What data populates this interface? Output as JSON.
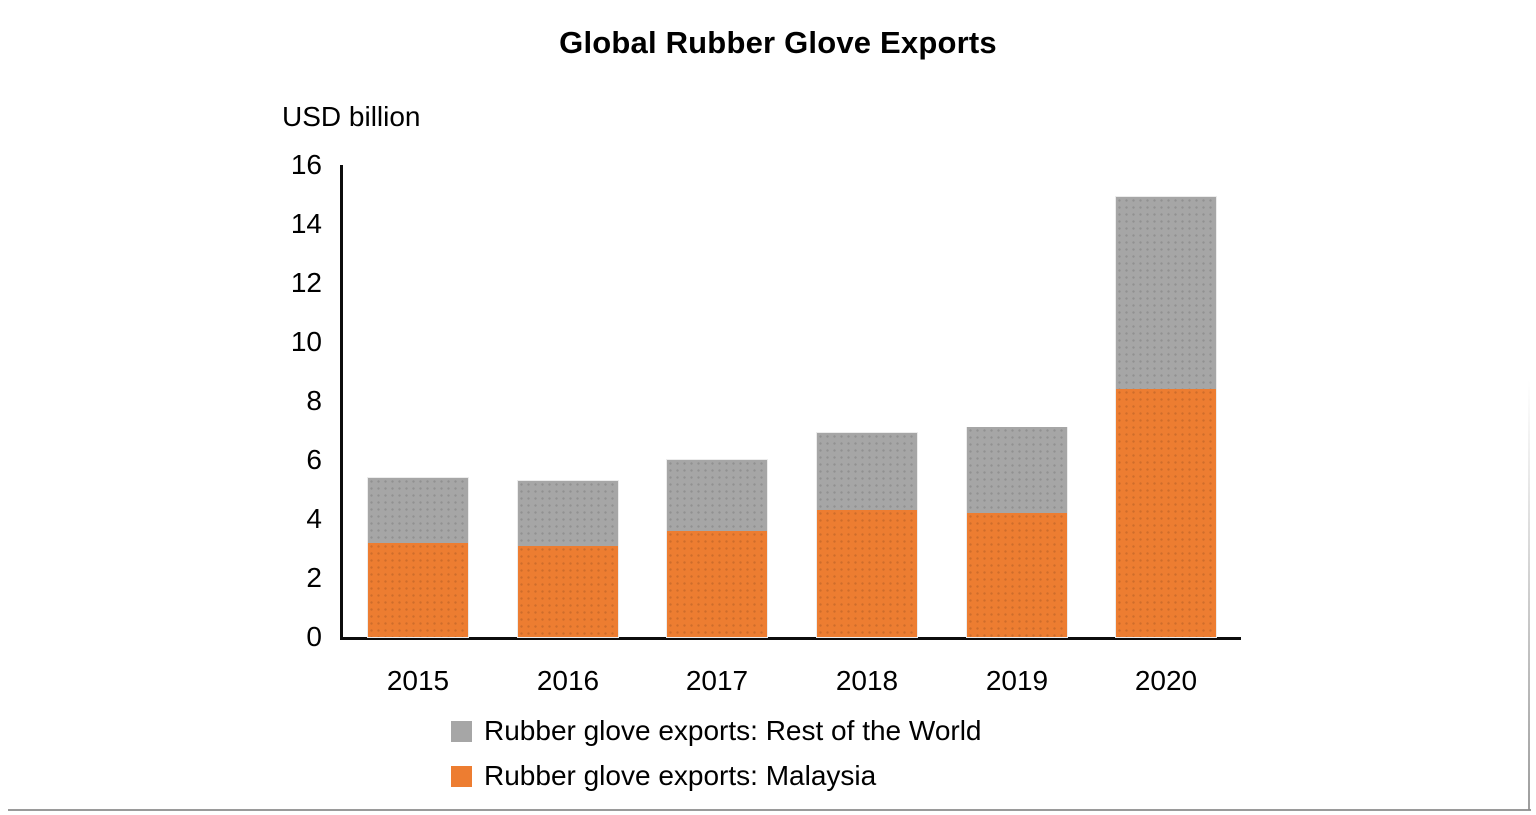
{
  "chart_data": {
    "type": "bar",
    "stacked": true,
    "title": "Global Rubber Glove Exports",
    "unit_label": "USD billion",
    "categories": [
      "2015",
      "2016",
      "2017",
      "2018",
      "2019",
      "2020"
    ],
    "series": [
      {
        "name": "Rubber glove exports: Malaysia",
        "color": "#ED7D31",
        "values": [
          3.2,
          3.1,
          3.6,
          4.3,
          4.2,
          8.4
        ]
      },
      {
        "name": "Rubber glove exports: Rest of the World",
        "color": "#A6A6A6",
        "values": [
          2.2,
          2.2,
          2.4,
          2.6,
          2.9,
          6.5
        ]
      }
    ],
    "totals": [
      5.4,
      5.3,
      6.0,
      6.9,
      7.1,
      14.9
    ],
    "legend": [
      {
        "label": "Rubber glove exports: Rest of the World",
        "color": "#A6A6A6"
      },
      {
        "label": "Rubber glove exports: Malaysia",
        "color": "#ED7D31"
      }
    ],
    "legend_position": "bottom-left",
    "yticks": [
      0,
      2,
      4,
      6,
      8,
      10,
      12,
      14,
      16
    ],
    "ylim": [
      0,
      16
    ],
    "xlabel": "",
    "ylabel": "USD billion",
    "grid": false,
    "axis_color": "#0d0d0d"
  },
  "page": {
    "border_color": "#9a9a9a"
  }
}
